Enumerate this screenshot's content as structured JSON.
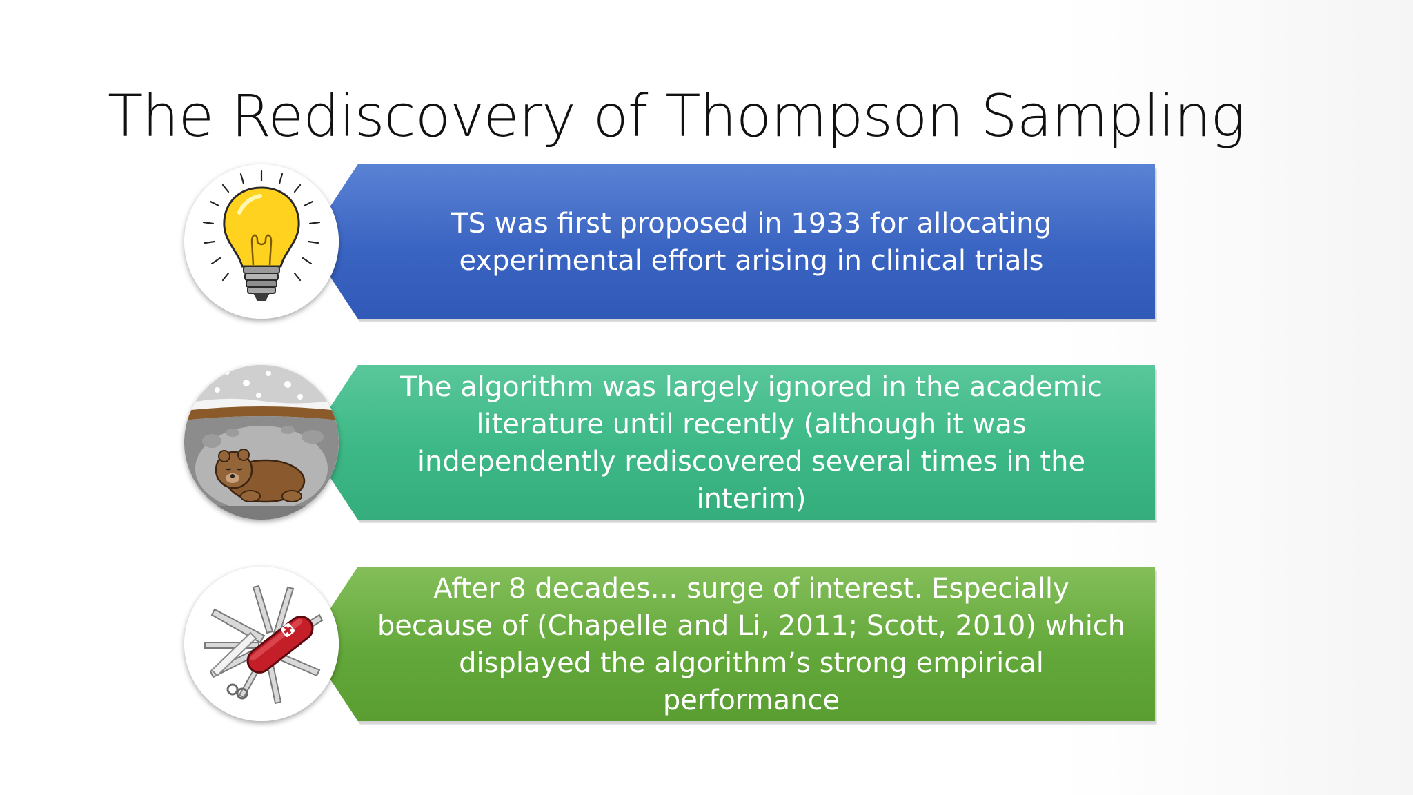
{
  "slide": {
    "title": "The Rediscovery of Thompson Sampling"
  },
  "items": [
    {
      "icon": "lightbulb-icon",
      "color": "#3f67c4",
      "text": "TS was first proposed in 1933 for allocating experimental effort arising in clinical trials"
    },
    {
      "icon": "hibernating-bear-icon",
      "color": "#3cb886",
      "text": "The algorithm was largely ignored in the academic literature until recently (although it was independently rediscovered several times in the interim)"
    },
    {
      "icon": "swiss-army-knife-icon",
      "color": "#63a83a",
      "text": "After 8 decades… surge of interest. Especially because of (Chapelle and Li, 2011; Scott, 2010) which displayed the algorithm’s strong empirical performance"
    }
  ]
}
